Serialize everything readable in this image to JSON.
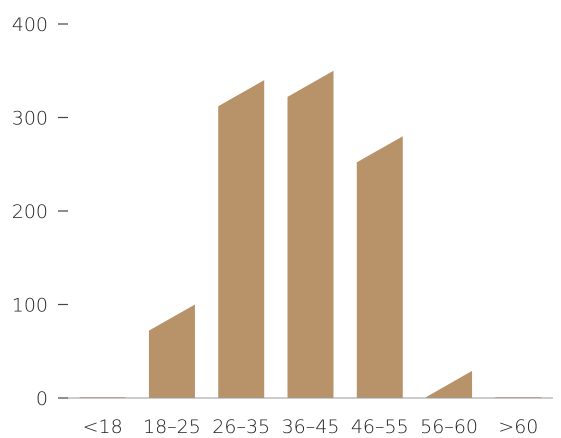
{
  "chart_data": {
    "type": "bar",
    "categories": [
      "<18",
      "18–25",
      "26–35",
      "36–45",
      "46–55",
      "56–60",
      ">60"
    ],
    "values": [
      1,
      100,
      340,
      350,
      280,
      29,
      1
    ],
    "start_values": [
      1,
      72,
      312,
      322,
      252,
      1,
      1
    ],
    "title": "",
    "xlabel": "",
    "ylabel": "",
    "ylim": [
      0,
      400
    ],
    "yticks": [
      "0",
      "100",
      "200",
      "300",
      "400"
    ],
    "grid": false,
    "bar_color": "#b8936a",
    "axis_color": "#444444"
  }
}
